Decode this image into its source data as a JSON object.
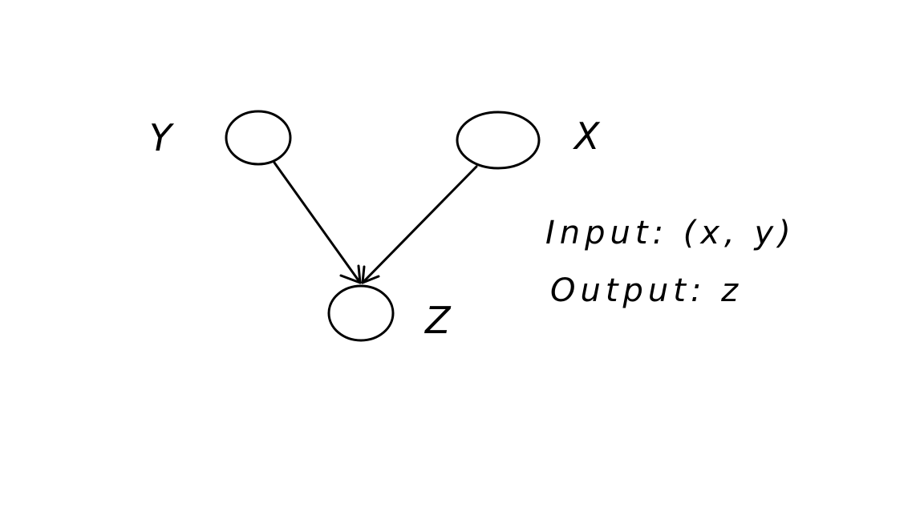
{
  "diagram": {
    "nodes": [
      {
        "id": "y",
        "label": "Y"
      },
      {
        "id": "x",
        "label": "X"
      },
      {
        "id": "z",
        "label": "Z"
      }
    ],
    "edges": [
      {
        "from": "y",
        "to": "z"
      },
      {
        "from": "x",
        "to": "z"
      }
    ],
    "notes": {
      "input": "Input: (x, y)",
      "output": "Output: z"
    },
    "stroke_color": "#000000",
    "background_color": "#ffffff"
  }
}
